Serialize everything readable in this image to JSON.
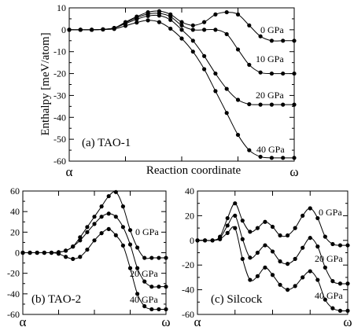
{
  "chart_data": [
    {
      "type": "line",
      "panel": "(a) TAO-1",
      "ylabel": "Enthalpy [meV/atom]",
      "xlabel": "Reaction coordinate",
      "x_start_label": "α",
      "x_end_label": "ω",
      "xlim": [
        0,
        20
      ],
      "ylim": [
        -60,
        10
      ],
      "yticks": [
        10,
        0,
        -10,
        -20,
        -30,
        -40,
        -50,
        -60
      ],
      "grid": false,
      "series": [
        {
          "name": "0 GPa",
          "x": [
            0,
            1,
            2,
            3,
            4,
            5,
            6,
            7,
            8,
            9,
            10,
            11,
            12,
            13,
            14,
            15,
            16,
            17,
            18,
            19,
            20
          ],
          "values": [
            0,
            0,
            0,
            0.2,
            0.8,
            3.5,
            6,
            8,
            8.5,
            7,
            3.5,
            2,
            3.5,
            7,
            8,
            7,
            2,
            -3,
            -5,
            -5,
            -5
          ]
        },
        {
          "name": "10 GPa",
          "x": [
            0,
            1,
            2,
            3,
            4,
            5,
            6,
            7,
            8,
            9,
            10,
            11,
            12,
            13,
            14,
            15,
            16,
            17,
            18,
            19,
            20
          ],
          "values": [
            0,
            0,
            0,
            0.2,
            0.8,
            3.2,
            5.5,
            7.2,
            7.5,
            6,
            2,
            0,
            0,
            0,
            -2,
            -9,
            -16,
            -19.5,
            -20,
            -20,
            -20
          ]
        },
        {
          "name": "20 GPa",
          "x": [
            0,
            1,
            2,
            3,
            4,
            5,
            6,
            7,
            8,
            9,
            10,
            11,
            12,
            13,
            14,
            15,
            16,
            17,
            18,
            19,
            20
          ],
          "values": [
            0,
            0,
            0,
            0.2,
            0.8,
            2.8,
            4.8,
            6.3,
            6.5,
            4.5,
            0,
            -5,
            -12,
            -20,
            -27,
            -32,
            -34,
            -34.2,
            -34.2,
            -34.2,
            -34.2
          ]
        },
        {
          "name": "40 GPa",
          "x": [
            0,
            1,
            2,
            3,
            4,
            5,
            6,
            7,
            8,
            9,
            10,
            11,
            12,
            13,
            14,
            15,
            16,
            17,
            18,
            19,
            20
          ],
          "values": [
            0,
            0,
            0,
            0.1,
            0.4,
            1.8,
            3.3,
            4.3,
            3.5,
            0.5,
            -4,
            -10,
            -18,
            -28,
            -38,
            -48,
            -55,
            -58,
            -58.5,
            -58.5,
            -58.5
          ]
        }
      ]
    },
    {
      "type": "line",
      "panel": "(b) TAO-2",
      "x_start_label": "α",
      "x_end_label": "ω",
      "xlim": [
        0,
        20
      ],
      "ylim": [
        -60,
        60
      ],
      "yticks": [
        60,
        40,
        20,
        0,
        -20,
        -40,
        -60
      ],
      "grid": false,
      "series": [
        {
          "name": "0 GPa",
          "x": [
            0,
            1,
            2,
            3,
            4,
            5,
            6,
            7,
            8,
            9,
            10,
            11,
            12,
            13,
            14,
            15,
            16,
            17,
            18,
            19,
            20
          ],
          "values": [
            0,
            0,
            0,
            0,
            0,
            0.5,
            2,
            6,
            15,
            25,
            35,
            45,
            55,
            59,
            45,
            22,
            5,
            -5,
            -5,
            -5,
            -5
          ]
        },
        {
          "name": "20 GPa",
          "x": [
            0,
            1,
            2,
            3,
            4,
            5,
            6,
            7,
            8,
            9,
            10,
            11,
            12,
            13,
            14,
            15,
            16,
            17,
            18,
            19,
            20
          ],
          "values": [
            0,
            0,
            0,
            0,
            0,
            0.5,
            2,
            6,
            12,
            20,
            28,
            35,
            38,
            35,
            25,
            8,
            -15,
            -28,
            -33,
            -33,
            -33
          ]
        },
        {
          "name": "40 GPa",
          "x": [
            0,
            1,
            2,
            3,
            4,
            5,
            6,
            7,
            8,
            9,
            10,
            11,
            12,
            13,
            14,
            15,
            16,
            17,
            18,
            19,
            20
          ],
          "values": [
            0,
            0,
            0,
            0,
            0,
            -1,
            -4,
            -6,
            -4,
            3,
            12,
            19,
            23,
            17,
            7,
            -15,
            -40,
            -52,
            -55,
            -55,
            -55
          ]
        }
      ]
    },
    {
      "type": "line",
      "panel": "(c) Silcock",
      "x_start_label": "α",
      "x_end_label": "ω",
      "xlim": [
        0,
        20
      ],
      "ylim": [
        -60,
        40
      ],
      "yticks": [
        40,
        20,
        0,
        -20,
        -40,
        -60
      ],
      "grid": false,
      "series": [
        {
          "name": "0 GPa",
          "x": [
            0,
            1,
            2,
            3,
            4,
            5,
            6,
            7,
            8,
            9,
            10,
            11,
            12,
            13,
            14,
            15,
            16,
            17,
            18,
            19,
            20
          ],
          "values": [
            0,
            0,
            0,
            3,
            18,
            30,
            16,
            7,
            10,
            15,
            11,
            4,
            4,
            10,
            20,
            26,
            18,
            3,
            -3,
            -4,
            -4
          ]
        },
        {
          "name": "20 GPa",
          "x": [
            0,
            1,
            2,
            3,
            4,
            5,
            6,
            7,
            8,
            9,
            10,
            11,
            12,
            13,
            14,
            15,
            16,
            17,
            18,
            19,
            20
          ],
          "values": [
            0,
            0,
            0,
            2,
            12,
            20,
            1,
            -14,
            -10,
            -4,
            -9,
            -17,
            -19,
            -15,
            -6,
            2,
            -5,
            -22,
            -33,
            -35,
            -35
          ]
        },
        {
          "name": "40 GPa",
          "x": [
            0,
            1,
            2,
            3,
            4,
            5,
            6,
            7,
            8,
            9,
            10,
            11,
            12,
            13,
            14,
            15,
            16,
            17,
            18,
            19,
            20
          ],
          "values": [
            0,
            0,
            0,
            1,
            6,
            10,
            -15,
            -32,
            -29,
            -22,
            -28,
            -36,
            -40,
            -37,
            -30,
            -25,
            -32,
            -48,
            -55,
            -57,
            -57
          ]
        }
      ]
    }
  ]
}
